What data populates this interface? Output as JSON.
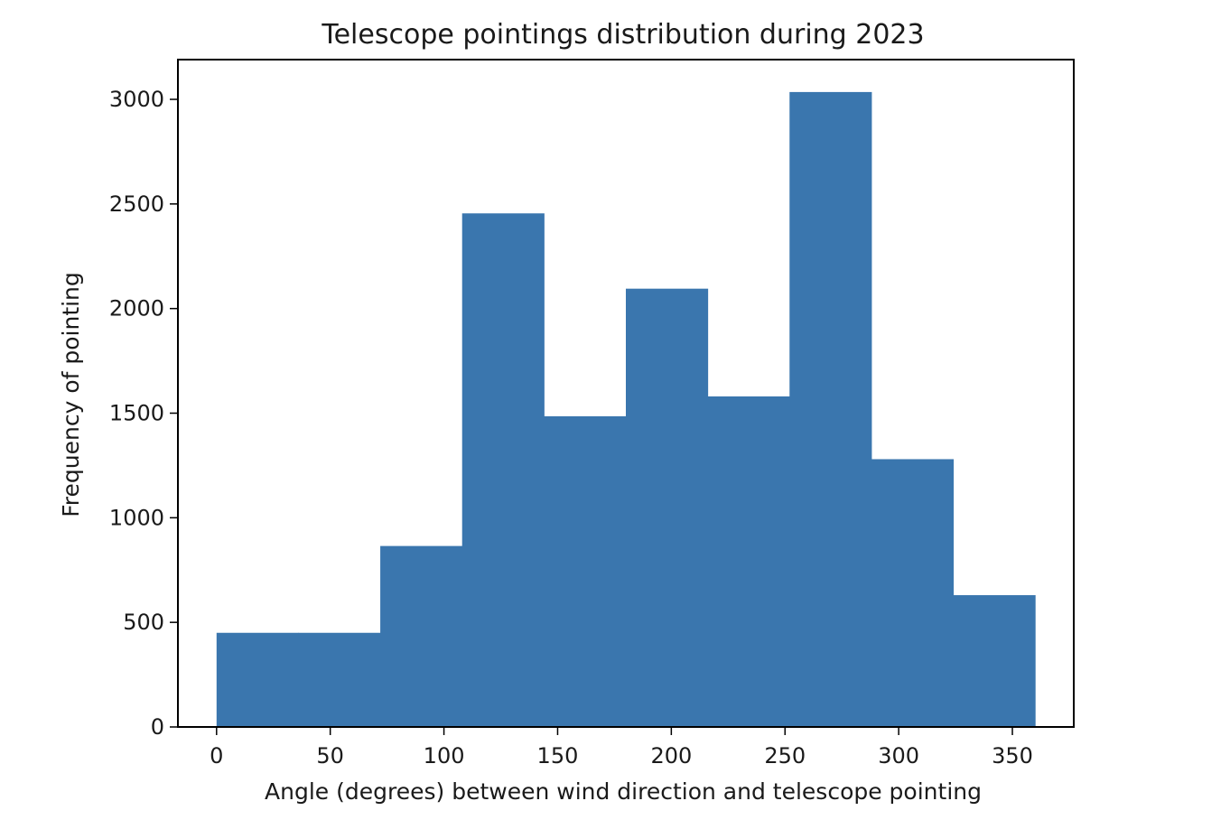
{
  "chart_data": {
    "type": "bar",
    "title": "Telescope pointings distribution during 2023",
    "xlabel": "Angle (degrees) between wind direction and telescope pointing",
    "ylabel": "Frequency of pointing",
    "bin_edges": [
      0,
      36,
      72,
      108,
      144,
      180,
      216,
      252,
      288,
      324,
      360
    ],
    "values": [
      450,
      450,
      865,
      2455,
      1485,
      2095,
      1580,
      3035,
      1280,
      630
    ],
    "xlim": [
      -17,
      377
    ],
    "ylim": [
      0,
      3190
    ],
    "x_ticks": [
      0,
      50,
      100,
      150,
      200,
      250,
      300,
      350
    ],
    "y_ticks": [
      0,
      500,
      1000,
      1500,
      2000,
      2500,
      3000
    ],
    "bar_color": "#3a76ae",
    "grid": false
  }
}
